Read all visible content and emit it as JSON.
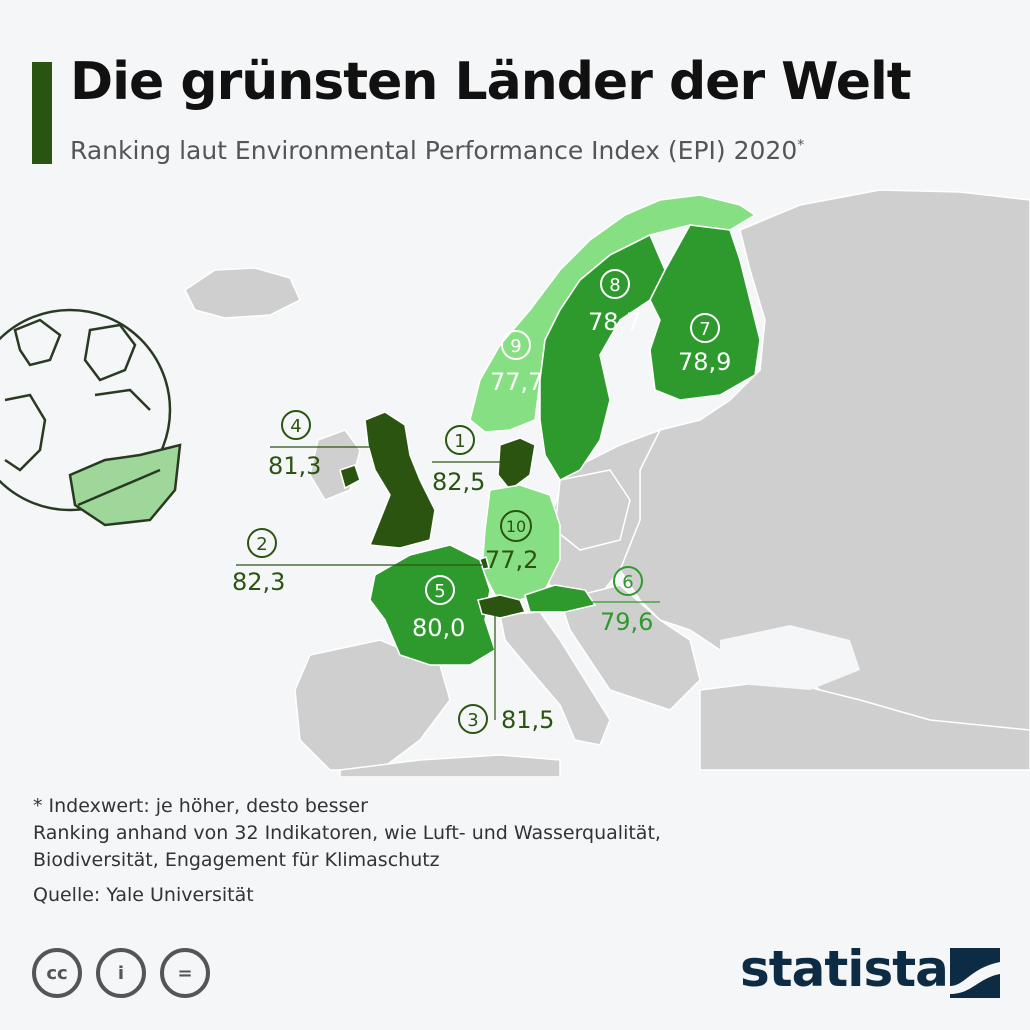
{
  "title": "Die grünsten Länder der Welt",
  "subtitle": "Ranking laut Environmental Performance Index (EPI) 2020",
  "subtitle_mark": "*",
  "colors": {
    "title_bar": "#2a5412",
    "land": "#cfcfcf",
    "rank_dark": "#2b5410",
    "rank_mid": "#2e9a2e",
    "rank_light": "#86e083",
    "label_dark": "#2b5410",
    "label_mid": "#2e9a2e",
    "brand": "#0e2b44"
  },
  "ranking": [
    {
      "rank": "1",
      "country": "Dänemark",
      "value": "82,5"
    },
    {
      "rank": "2",
      "country": "Luxemburg",
      "value": "82,3"
    },
    {
      "rank": "3",
      "country": "Schweiz",
      "value": "81,5"
    },
    {
      "rank": "4",
      "country": "Vereinigtes Königreich",
      "value": "81,3"
    },
    {
      "rank": "5",
      "country": "Frankreich",
      "value": "80,0"
    },
    {
      "rank": "6",
      "country": "Österreich",
      "value": "79,6"
    },
    {
      "rank": "7",
      "country": "Finnland",
      "value": "78,9"
    },
    {
      "rank": "8",
      "country": "Schweden",
      "value": "78,7"
    },
    {
      "rank": "9",
      "country": "Norwegen",
      "value": "77,7"
    },
    {
      "rank": "10",
      "country": "Deutschland",
      "value": "77,2"
    }
  ],
  "footnotes": {
    "line1": "* Indexwert: je höher, desto besser",
    "line2": "Ranking anhand von 32 Indikatoren, wie Luft- und Wasserqualität,",
    "line3": "Biodiversität, Engagement für Klimaschutz",
    "source": "Quelle: Yale Universität"
  },
  "license_icons": [
    "cc-icon",
    "by-icon",
    "nd-icon"
  ],
  "license_labels": {
    "cc": "cc",
    "by": "i",
    "nd": "="
  },
  "brand": "statista"
}
